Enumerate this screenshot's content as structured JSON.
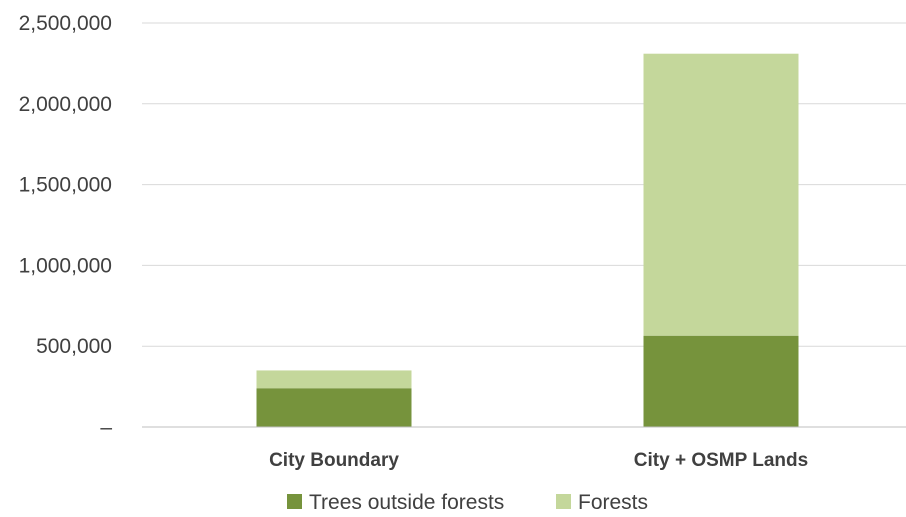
{
  "chart_data": {
    "type": "bar",
    "stacked": true,
    "categories": [
      "City Boundary",
      "City + OSMP Lands"
    ],
    "series": [
      {
        "name": "Trees outside forests",
        "values": [
          240000,
          565000
        ],
        "color": "#76933c"
      },
      {
        "name": "Forests",
        "values": [
          110000,
          1745000
        ],
        "color": "#c4d79b"
      }
    ],
    "y_ticks": [
      {
        "value": 0,
        "label": "–"
      },
      {
        "value": 500000,
        "label": "500,000"
      },
      {
        "value": 1000000,
        "label": "1,000,000"
      },
      {
        "value": 1500000,
        "label": "1,500,000"
      },
      {
        "value": 2000000,
        "label": "2,000,000"
      },
      {
        "value": 2500000,
        "label": "2,500,000"
      }
    ],
    "ylim": [
      0,
      2500000
    ],
    "grid": true,
    "legend_position": "bottom",
    "title": "",
    "xlabel": "",
    "ylabel": ""
  }
}
